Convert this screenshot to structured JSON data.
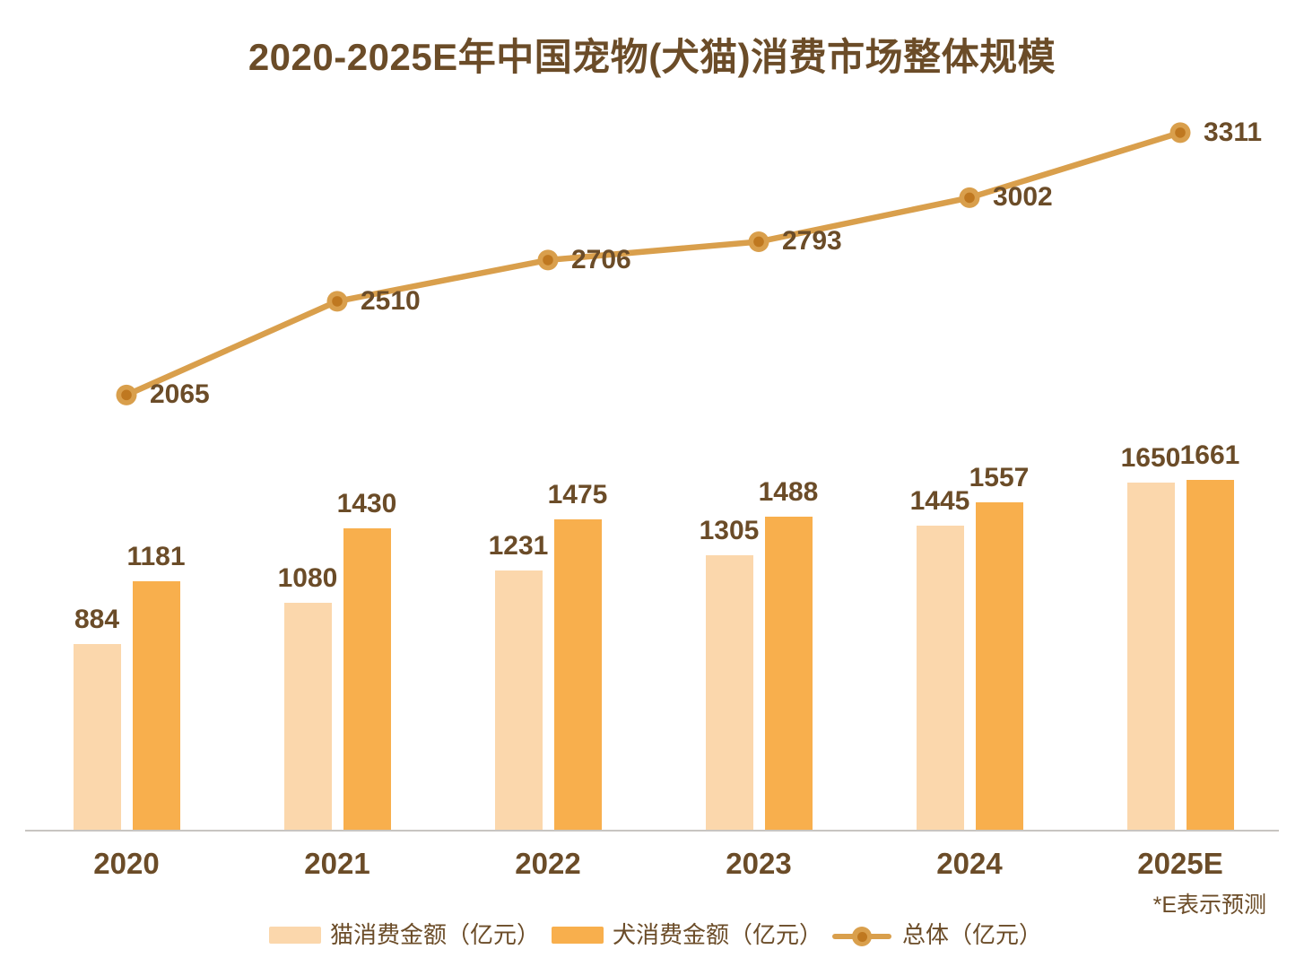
{
  "title": "2020-2025E年中国宠物(犬猫)消费市场整体规模",
  "footnote": "*E表示预测",
  "legend": {
    "cat_label": "猫消费金额（亿元）",
    "dog_label": "犬消费金额（亿元）",
    "total_label": "总体（亿元）"
  },
  "colors": {
    "cat_bar": "#FBD7AC",
    "dog_bar": "#F8AF4D",
    "line": "#D99F4C",
    "marker_center": "#BF7820",
    "text_brown": "#6B4C28",
    "axis_line": "#C8C5C1",
    "background": "#FFFFFF"
  },
  "chart_data": {
    "type": "combo",
    "title": "2020-2025E年中国宠物(犬猫)消费市场整体规模",
    "categories": [
      "2020",
      "2021",
      "2022",
      "2023",
      "2024",
      "2025E"
    ],
    "series": [
      {
        "name": "猫消费金额（亿元）",
        "type": "bar",
        "values": [
          884,
          1080,
          1231,
          1305,
          1445,
          1650
        ]
      },
      {
        "name": "犬消费金额（亿元）",
        "type": "bar",
        "values": [
          1181,
          1430,
          1475,
          1488,
          1557,
          1661
        ]
      },
      {
        "name": "总体（亿元）",
        "type": "line",
        "values": [
          2065,
          2510,
          2706,
          2793,
          3002,
          3311
        ]
      }
    ],
    "xlabel": "",
    "ylabel": "",
    "ylim": [
      0,
      3900
    ],
    "value_axis_hidden": true,
    "grid": false,
    "data_labels": true,
    "legend_position": "bottom",
    "annotation": "*E表示预测"
  }
}
